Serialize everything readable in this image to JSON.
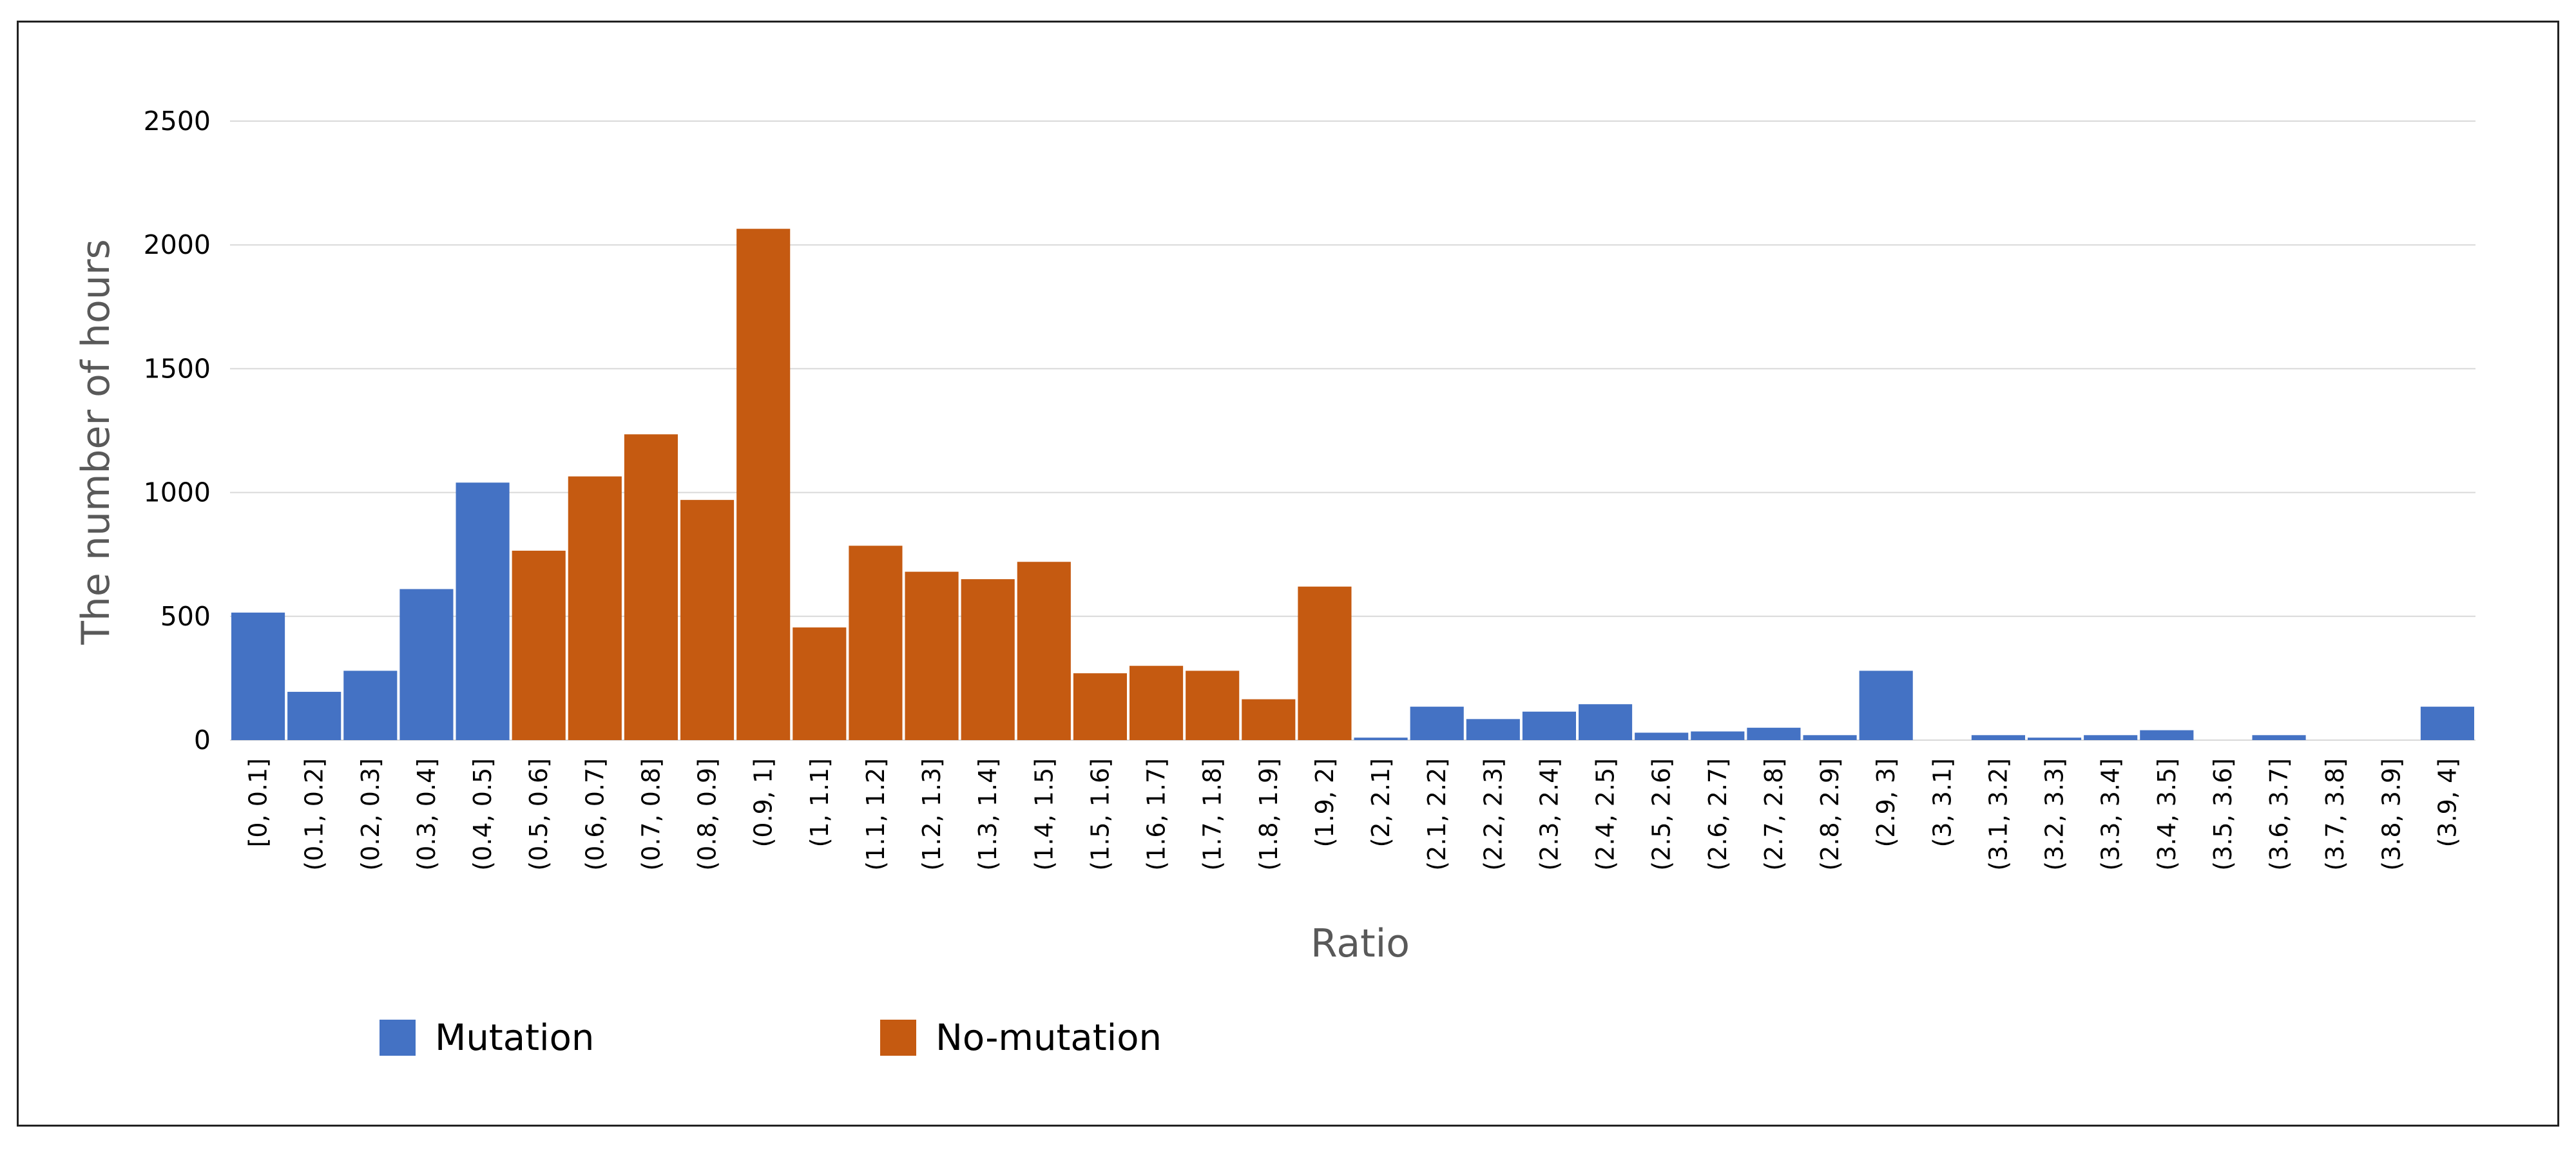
{
  "chart_data": {
    "type": "bar",
    "xlabel": "Ratio",
    "ylabel": "The number of hours",
    "ylim": [
      0,
      2500
    ],
    "yticks": [
      0,
      500,
      1000,
      1500,
      2000,
      2500
    ],
    "grid": true,
    "legend_position": "bottom-left",
    "categories": [
      "[0, 0.1]",
      "(0.1, 0.2]",
      "(0.2, 0.3]",
      "(0.3, 0.4]",
      "(0.4, 0.5]",
      "(0.5, 0.6]",
      "(0.6, 0.7]",
      "(0.7, 0.8]",
      "(0.8, 0.9]",
      "(0.9, 1]",
      "(1, 1.1]",
      "(1.1, 1.2]",
      "(1.2, 1.3]",
      "(1.3, 1.4]",
      "(1.4, 1.5]",
      "(1.5, 1.6]",
      "(1.6, 1.7]",
      "(1.7, 1.8]",
      "(1.8, 1.9]",
      "(1.9, 2]",
      "(2, 2.1]",
      "(2.1, 2.2]",
      "(2.2, 2.3]",
      "(2.3, 2.4]",
      "(2.4, 2.5]",
      "(2.5, 2.6]",
      "(2.6, 2.7]",
      "(2.7, 2.8]",
      "(2.8, 2.9]",
      "(2.9, 3]",
      "(3, 3.1]",
      "(3.1, 3.2]",
      "(3.2, 3.3]",
      "(3.3, 3.4]",
      "(3.4, 3.5]",
      "(3.5, 3.6]",
      "(3.6, 3.7]",
      "(3.7, 3.8]",
      "(3.8, 3.9]",
      "(3.9, 4]"
    ],
    "values": [
      515,
      195,
      280,
      610,
      1040,
      765,
      1065,
      1235,
      970,
      2065,
      455,
      785,
      680,
      650,
      720,
      270,
      300,
      280,
      165,
      620,
      10,
      135,
      85,
      115,
      145,
      30,
      35,
      50,
      20,
      280,
      0,
      20,
      10,
      20,
      40,
      0,
      20,
      0,
      0,
      135
    ],
    "bar_group": [
      "Mutation",
      "Mutation",
      "Mutation",
      "Mutation",
      "Mutation",
      "No-mutation",
      "No-mutation",
      "No-mutation",
      "No-mutation",
      "No-mutation",
      "No-mutation",
      "No-mutation",
      "No-mutation",
      "No-mutation",
      "No-mutation",
      "No-mutation",
      "No-mutation",
      "No-mutation",
      "No-mutation",
      "No-mutation",
      "Mutation",
      "Mutation",
      "Mutation",
      "Mutation",
      "Mutation",
      "Mutation",
      "Mutation",
      "Mutation",
      "Mutation",
      "Mutation",
      "Mutation",
      "Mutation",
      "Mutation",
      "Mutation",
      "Mutation",
      "Mutation",
      "Mutation",
      "Mutation",
      "Mutation",
      "Mutation"
    ],
    "legend": [
      {
        "name": "Mutation",
        "color": "#4472c4"
      },
      {
        "name": "No-mutation",
        "color": "#c55a11"
      }
    ],
    "colors": {
      "Mutation": "#4472c4",
      "No-mutation": "#c55a11",
      "gridline": "#d9d9d9",
      "axis_title": "#595959"
    }
  }
}
